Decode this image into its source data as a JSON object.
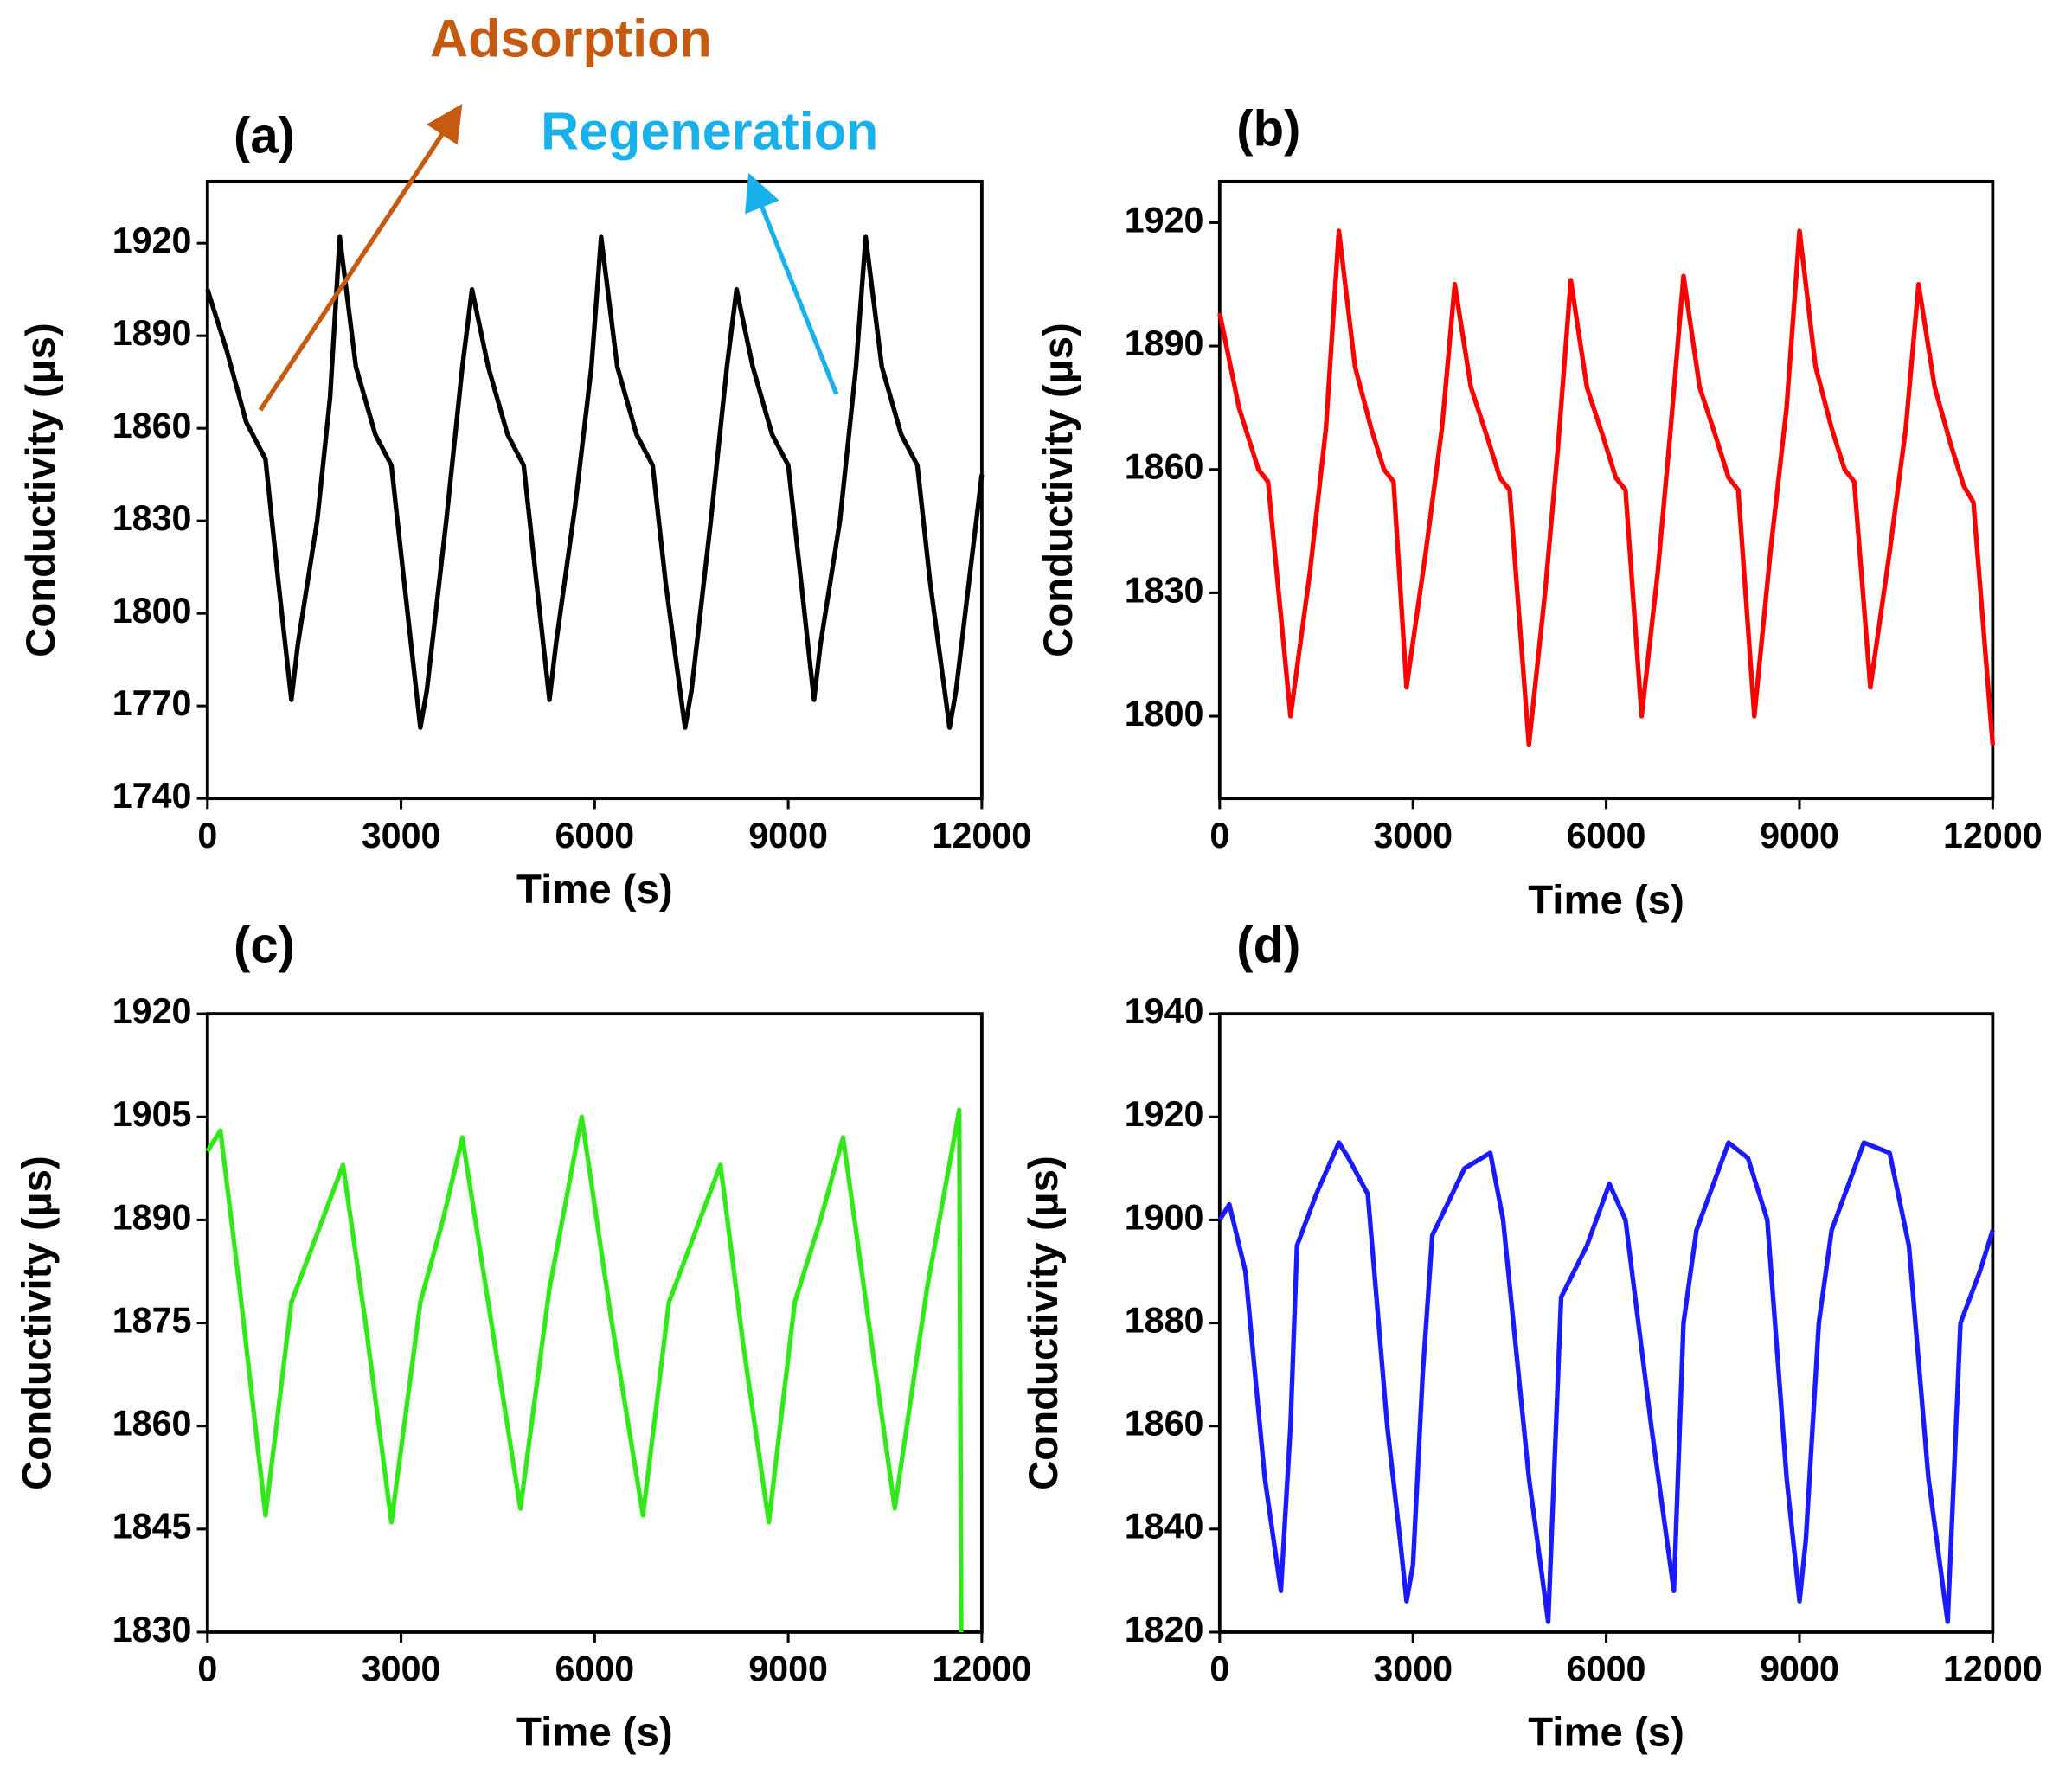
{
  "chart_data": [
    {
      "type": "line",
      "label": "(a)",
      "xlabel": "Time (s)",
      "ylabel": "Conductivity (μs)",
      "xlim": [
        0,
        12000
      ],
      "xticks": [
        0,
        3000,
        6000,
        9000,
        12000
      ],
      "ylim": [
        1740,
        1940
      ],
      "yticks": [
        1740,
        1770,
        1800,
        1830,
        1860,
        1890,
        1920
      ],
      "annotations": [
        {
          "text": "Adsorption",
          "color": "#c55a11"
        },
        {
          "text": "Regeneration",
          "color": "#1ab0ea"
        }
      ],
      "series": [
        {
          "color": "#000000",
          "x": [
            0,
            300,
            600,
            900,
            1100,
            1300,
            1400,
            1700,
            1900,
            2050,
            2300,
            2600,
            2850,
            3050,
            3300,
            3400,
            3700,
            3950,
            4100,
            4350,
            4650,
            4900,
            5100,
            5300,
            5400,
            5700,
            5950,
            6100,
            6350,
            6650,
            6900,
            7100,
            7400,
            7500,
            7800,
            8050,
            8200,
            8450,
            8750,
            9000,
            9200,
            9400,
            9500,
            9800,
            10050,
            10200,
            10450,
            10750,
            11000,
            11200,
            11500,
            11600,
            11800,
            12000
          ],
          "values": [
            1905,
            1885,
            1862,
            1850,
            1810,
            1772,
            1790,
            1830,
            1870,
            1922,
            1880,
            1858,
            1848,
            1810,
            1763,
            1775,
            1830,
            1880,
            1905,
            1880,
            1858,
            1848,
            1810,
            1772,
            1790,
            1835,
            1880,
            1922,
            1880,
            1858,
            1848,
            1810,
            1763,
            1775,
            1830,
            1880,
            1905,
            1880,
            1858,
            1848,
            1810,
            1772,
            1790,
            1830,
            1880,
            1922,
            1880,
            1858,
            1848,
            1810,
            1763,
            1775,
            1810,
            1845
          ]
        }
      ]
    },
    {
      "type": "line",
      "label": "(b)",
      "xlabel": "Time (s)",
      "ylabel": "Conductivity (μs)",
      "xlim": [
        0,
        12000
      ],
      "xticks": [
        0,
        3000,
        6000,
        9000,
        12000
      ],
      "ylim": [
        1780,
        1930
      ],
      "yticks": [
        1800,
        1830,
        1860,
        1890,
        1920
      ],
      "series": [
        {
          "color": "#ff0000",
          "x": [
            0,
            300,
            600,
            750,
            1100,
            1400,
            1650,
            1850,
            2100,
            2350,
            2550,
            2700,
            2900,
            3200,
            3450,
            3650,
            3900,
            4150,
            4350,
            4500,
            4800,
            5050,
            5250,
            5450,
            5700,
            5950,
            6150,
            6300,
            6550,
            6800,
            7000,
            7200,
            7450,
            7700,
            7900,
            8050,
            8300,
            8550,
            8800,
            9000,
            9250,
            9500,
            9700,
            9850,
            10100,
            10400,
            10650,
            10850,
            11100,
            11350,
            11550,
            11700,
            12000
          ],
          "values": [
            1898,
            1875,
            1860,
            1857,
            1800,
            1835,
            1870,
            1918,
            1885,
            1870,
            1860,
            1857,
            1807,
            1840,
            1870,
            1905,
            1880,
            1868,
            1858,
            1855,
            1793,
            1830,
            1865,
            1906,
            1880,
            1868,
            1858,
            1855,
            1800,
            1835,
            1870,
            1907,
            1880,
            1868,
            1858,
            1855,
            1800,
            1840,
            1875,
            1918,
            1885,
            1870,
            1860,
            1857,
            1807,
            1840,
            1870,
            1905,
            1880,
            1866,
            1856,
            1852,
            1793
          ]
        }
      ]
    },
    {
      "type": "line",
      "label": "(c)",
      "xlabel": "Time (s)",
      "ylabel": "Conductivity (μs)",
      "xlim": [
        0,
        12000
      ],
      "xticks": [
        0,
        3000,
        6000,
        9000,
        12000
      ],
      "ylim": [
        1830,
        1920
      ],
      "yticks": [
        1830,
        1845,
        1860,
        1875,
        1890,
        1905,
        1920
      ],
      "series": [
        {
          "color": "#33e81a",
          "x": [
            0,
            200,
            500,
            900,
            1300,
            1700,
            2100,
            2450,
            2850,
            3300,
            3650,
            3950,
            4400,
            4850,
            5300,
            5800,
            6250,
            6750,
            7150,
            7550,
            7950,
            8300,
            8700,
            9100,
            9500,
            9850,
            10250,
            10650,
            11150,
            11650,
            11680
          ],
          "values": [
            1900,
            1903,
            1880,
            1847,
            1878,
            1888,
            1898,
            1875,
            1846,
            1878,
            1890,
            1902,
            1875,
            1848,
            1880,
            1905,
            1876,
            1847,
            1878,
            1888,
            1898,
            1872,
            1846,
            1878,
            1890,
            1902,
            1875,
            1848,
            1880,
            1906,
            1830
          ]
        }
      ]
    },
    {
      "type": "line",
      "label": "(d)",
      "xlabel": "Time (s)",
      "ylabel": "Conductivity (μs)",
      "xlim": [
        0,
        12000
      ],
      "xticks": [
        0,
        3000,
        6000,
        9000,
        12000
      ],
      "ylim": [
        1820,
        1940
      ],
      "yticks": [
        1820,
        1840,
        1860,
        1880,
        1900,
        1920,
        1940
      ],
      "series": [
        {
          "color": "#1a1aff",
          "x": [
            0,
            150,
            400,
            700,
            950,
            1100,
            1200,
            1500,
            1850,
            2000,
            2300,
            2600,
            2800,
            2900,
            3000,
            3150,
            3300,
            3800,
            4200,
            4400,
            4800,
            5100,
            5300,
            5700,
            6050,
            6300,
            6700,
            7050,
            7200,
            7400,
            7900,
            8200,
            8500,
            8800,
            9000,
            9100,
            9300,
            9500,
            10000,
            10400,
            10700,
            11000,
            11300,
            11500,
            11800,
            12000
          ],
          "values": [
            1900,
            1903,
            1890,
            1850,
            1828,
            1860,
            1895,
            1905,
            1915,
            1912,
            1905,
            1860,
            1838,
            1826,
            1833,
            1870,
            1897,
            1910,
            1913,
            1900,
            1850,
            1822,
            1885,
            1895,
            1907,
            1900,
            1860,
            1828,
            1880,
            1898,
            1915,
            1912,
            1900,
            1850,
            1826,
            1838,
            1880,
            1898,
            1915,
            1913,
            1895,
            1850,
            1822,
            1880,
            1890,
            1898
          ]
        }
      ]
    }
  ]
}
